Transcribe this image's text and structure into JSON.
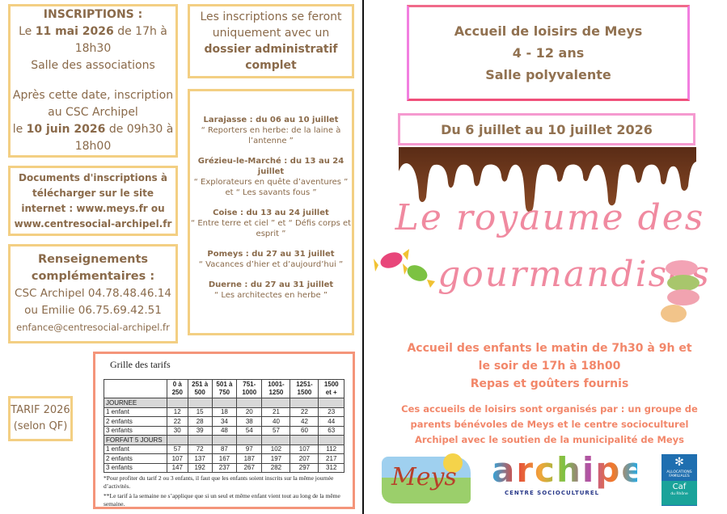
{
  "inscriptions": {
    "heading": "INSCRIPTIONS :",
    "l1_pre": "Le ",
    "l1_bold": "11 mai 2026",
    "l1_post": " de 17h à 18h30",
    "l2": "Salle des associations",
    "l3": "Après cette date, inscription au CSC Archipel",
    "l4_pre": "le ",
    "l4_bold": "10 juin 2026",
    "l4_post": " de 09h30 à 18h00"
  },
  "dossier": {
    "text": "Les inscriptions se feront uniquement avec un",
    "bold": "dossier administratif complet"
  },
  "documents": {
    "text": "Documents d'inscriptions à télécharger sur le site internet : www.meys.fr ou www.centresocial-archipel.fr"
  },
  "sites": [
    {
      "title": "Larajasse : du 06 au 10 juillet",
      "desc": "“ Reporters en herbe: de la laine à l’antenne ”"
    },
    {
      "title": "Grézieu-le-Marché : du 13 au 24 juillet",
      "desc": "“ Explorateurs en quête d’aventures ” et “ Les savants fous ”"
    },
    {
      "title": "Coise : du 13 au 24 juillet",
      "desc": "“ Entre terre et ciel ” et “ Défis corps et esprit ”"
    },
    {
      "title": "Pomeys : du 27 au 31 juillet",
      "desc": "“ Vacances d’hier et d’aujourd’hui ”"
    },
    {
      "title": "Duerne : du 27 au 31 juillet",
      "desc": "“ Les architectes en herbe ”"
    }
  ],
  "renseignements": {
    "heading": "Renseignements complémentaires :",
    "l1": "CSC Archipel 04.78.48.46.14",
    "l2": "ou Emilie 06.75.69.42.51",
    "l3": "enfance@centresocial-archipel.fr"
  },
  "tarif_label": {
    "l1": "TARIF 2026",
    "l2": "(selon QF)"
  },
  "grid": {
    "title": "Grille des tarifs",
    "headers": [
      "",
      "0 à 250",
      "251 à 500",
      "501 à 750",
      "751-1000",
      "1001-1250",
      "1251-1500",
      "1500 et +"
    ],
    "sections": [
      {
        "name": "JOURNEE",
        "rows": [
          [
            "1 enfant",
            "12",
            "15",
            "18",
            "20",
            "21",
            "22",
            "23"
          ],
          [
            "2 enfants",
            "22",
            "28",
            "34",
            "38",
            "40",
            "42",
            "44"
          ],
          [
            "3 enfants",
            "30",
            "39",
            "48",
            "54",
            "57",
            "60",
            "63"
          ]
        ]
      },
      {
        "name": "FORFAIT 5 JOURS",
        "rows": [
          [
            "1 enfant",
            "57",
            "72",
            "87",
            "97",
            "102",
            "107",
            "112"
          ],
          [
            "2 enfants",
            "107",
            "137",
            "167",
            "187",
            "197",
            "207",
            "217"
          ],
          [
            "3 enfants",
            "147",
            "192",
            "237",
            "267",
            "282",
            "297",
            "312"
          ]
        ]
      }
    ],
    "note1": "*Pour profiter du tarif 2 ou 3 enfants, il faut que les enfants soient inscrits sur la même journée d’activités.",
    "note2": "**Le tarif à la semaine ne s’applique que si un seul et même enfant vient tout au long de la même semaine."
  },
  "header": {
    "l1": "Accueil de loisirs de Meys",
    "l2": "4 - 12 ans",
    "l3": "Salle polyvalente"
  },
  "dates": "Du 6 juillet au 10 juillet 2026",
  "title": {
    "l1": "Le royaume des",
    "l2": "gourmandises"
  },
  "accueil": {
    "l1": "Accueil des enfants le matin de 7h30 à 9h et",
    "l2": "le soir de 17h à 18h00",
    "l3": "Repas et goûters fournis"
  },
  "orga": "Ces accueils de loisirs sont organisés par : un groupe de parents bénévoles de Meys et le centre socioculturel Archipel avec le soutien de la municipalité de Meys",
  "logos": {
    "meys": "Meys",
    "archipel": "archipel",
    "archipel_sub": "CENTRE SOCIOCULTUREL",
    "caf_l1": "ALLOCATIONS FAMILIALES",
    "caf_l2": "Caf",
    "caf_l3": "du Rhône"
  },
  "colors": {
    "gold_border": "#f3cf83",
    "text_brown": "#8a6a4a",
    "salmon": "#f2876a",
    "pink": "#f08aa0"
  }
}
